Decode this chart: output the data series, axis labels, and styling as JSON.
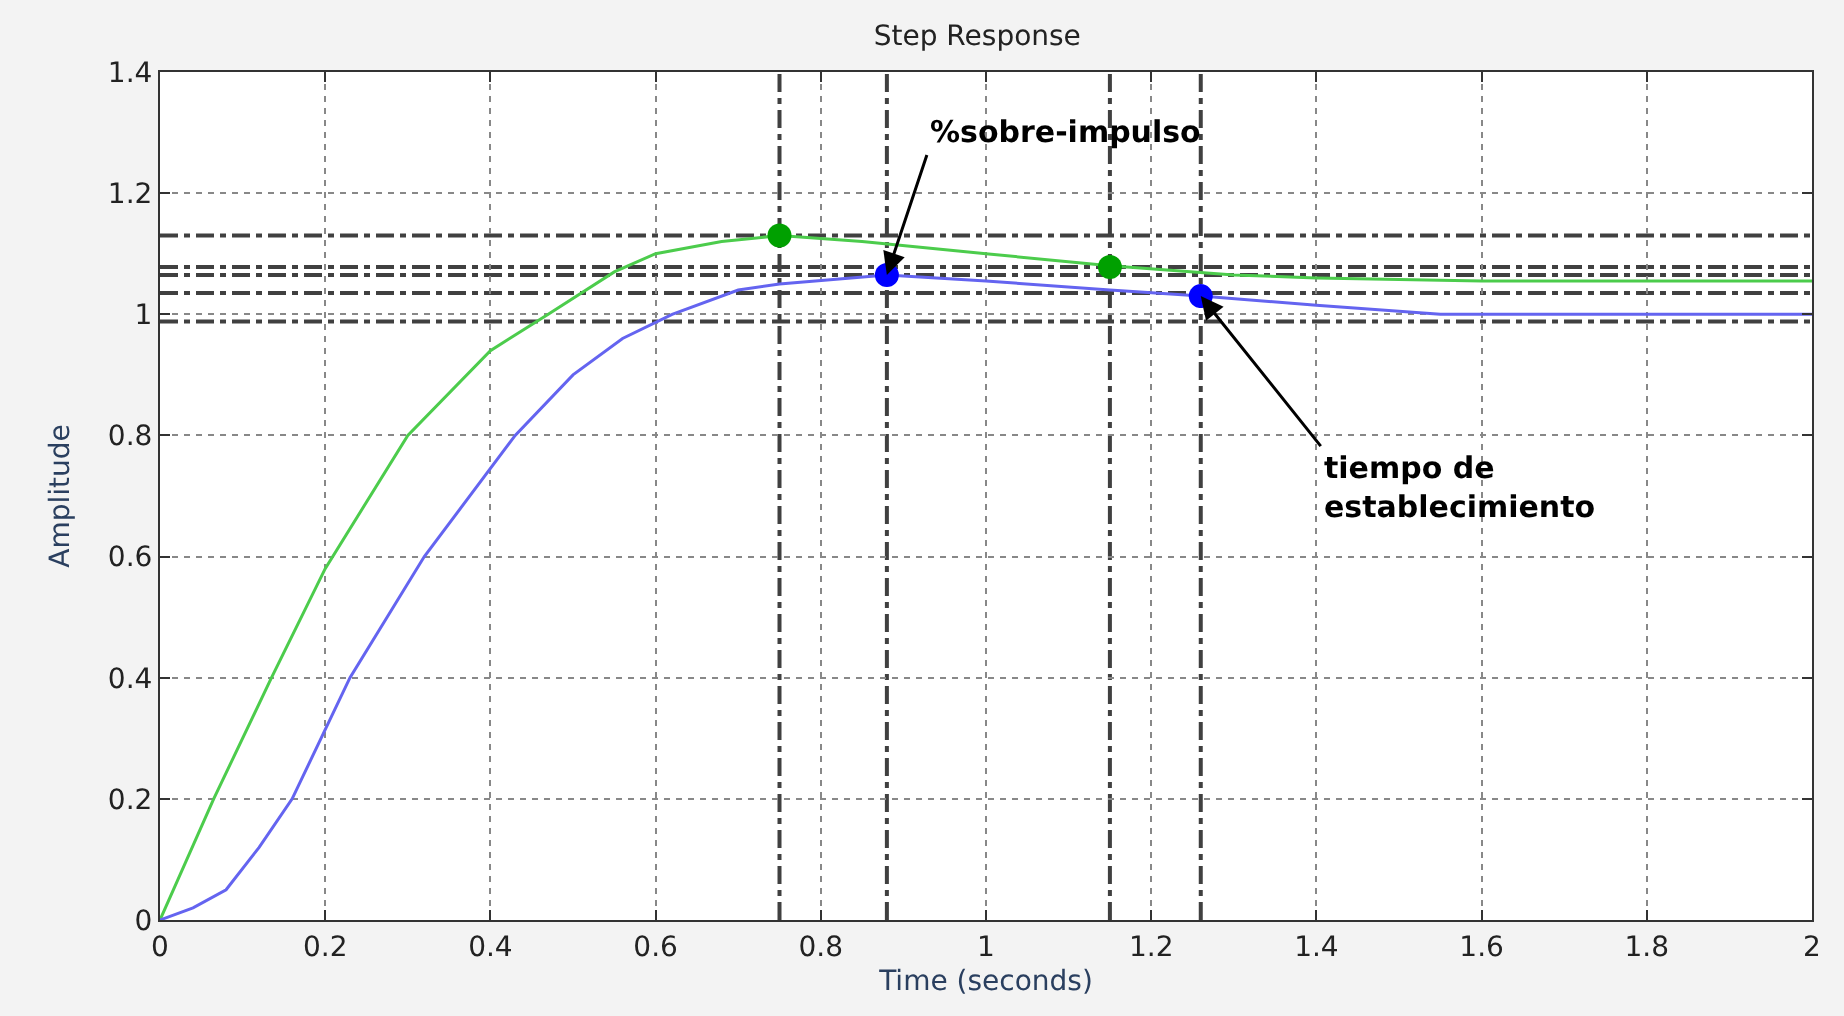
{
  "chart_data": {
    "type": "line",
    "title": "Step Response",
    "xlabel": "Time (seconds)",
    "ylabel": "Amplitude",
    "xlim": [
      0,
      2
    ],
    "xticks": [
      0,
      0.2,
      0.4,
      0.6,
      0.8,
      1,
      1.2,
      1.4,
      1.6,
      1.8,
      2
    ],
    "ylim": [
      0,
      1.4
    ],
    "yticks": [
      0,
      0.2,
      0.4,
      0.6,
      0.8,
      1,
      1.2,
      1.4
    ],
    "grid": true,
    "series": [
      {
        "color": "#4ccc4c",
        "x": [
          0,
          0.065,
          0.135,
          0.2,
          0.3,
          0.4,
          0.47,
          0.55,
          0.6,
          0.68,
          0.75,
          0.85,
          1.0,
          1.15,
          1.3,
          1.4,
          1.6,
          1.8,
          2
        ],
        "values": [
          0,
          0.2,
          0.4,
          0.58,
          0.8,
          0.94,
          1.0,
          1.07,
          1.1,
          1.12,
          1.13,
          1.12,
          1.1,
          1.08,
          1.065,
          1.06,
          1.055,
          1.055,
          1.055
        ]
      },
      {
        "color": "#6464f0",
        "x": [
          0,
          0.04,
          0.08,
          0.12,
          0.16,
          0.23,
          0.32,
          0.43,
          0.5,
          0.56,
          0.62,
          0.7,
          0.75,
          0.88,
          1.0,
          1.15,
          1.26,
          1.4,
          1.55,
          1.8,
          2
        ],
        "values": [
          0,
          0.02,
          0.05,
          0.12,
          0.2,
          0.4,
          0.6,
          0.8,
          0.9,
          0.96,
          1.0,
          1.04,
          1.05,
          1.065,
          1.055,
          1.04,
          1.03,
          1.015,
          1.0,
          1.0,
          1.0
        ]
      },
      {
        "type": "scatter",
        "marker": "circle",
        "color": "#00a000",
        "x": [
          0.75,
          1.15
        ],
        "values": [
          1.13,
          1.078
        ]
      },
      {
        "type": "scatter",
        "marker": "circle",
        "color": "#0000ff",
        "x": [
          0.88,
          1.26
        ],
        "values": [
          1.065,
          1.03
        ]
      }
    ],
    "ref_lines": [
      {
        "axis": "y",
        "value": 1.13,
        "color": "#404040",
        "line_style": "dashdot"
      },
      {
        "axis": "y",
        "value": 1.078,
        "color": "#404040",
        "line_style": "dashdot"
      },
      {
        "axis": "y",
        "value": 1.065,
        "color": "#404040",
        "line_style": "dashdot"
      },
      {
        "axis": "y",
        "value": 1.035,
        "color": "#404040",
        "line_style": "dashdot"
      },
      {
        "axis": "y",
        "value": 0.988,
        "color": "#404040",
        "line_style": "dashdot"
      },
      {
        "axis": "x",
        "value": 0.75,
        "color": "#404040",
        "line_style": "dashdot"
      },
      {
        "axis": "x",
        "value": 0.88,
        "color": "#404040",
        "line_style": "dashdot"
      },
      {
        "axis": "x",
        "value": 1.15,
        "color": "#404040",
        "line_style": "dashdot"
      },
      {
        "axis": "x",
        "value": 1.26,
        "color": "#404040",
        "line_style": "dashdot"
      }
    ],
    "annotations": [
      {
        "text": "%sobre-impulso",
        "x": 0.88,
        "y": 1.065
      },
      {
        "text": "tiempo de\nestablecimiento",
        "x": 1.26,
        "y": 1.03
      }
    ]
  }
}
